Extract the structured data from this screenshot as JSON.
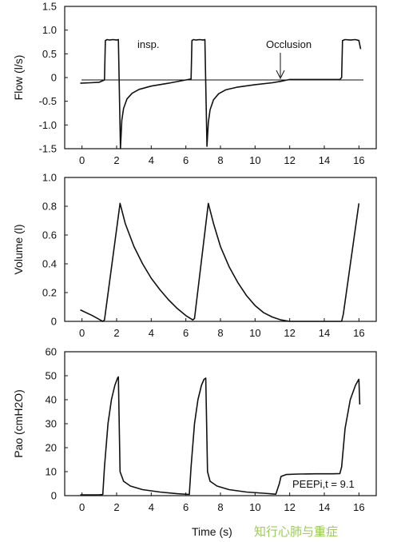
{
  "chart_data": [
    {
      "type": "line",
      "ylabel": "Flow (l/s)",
      "xlim": [
        -1,
        17
      ],
      "ylim": [
        -1.5,
        1.5
      ],
      "xticks": [
        0,
        2,
        4,
        6,
        8,
        10,
        12,
        14,
        16
      ],
      "yticks": [
        1.5,
        1.0,
        0.5,
        0,
        -0.5,
        -1.0,
        -1.5
      ],
      "ytick_labels": [
        "1.5",
        "1.0",
        "0.5",
        "0",
        "-0.5",
        "-1.0",
        "-1.5"
      ],
      "zero_line": true,
      "annotations": [
        "insp.",
        "Occlusion"
      ],
      "series": [
        {
          "x": [
            -0.1,
            0.5,
            1.0,
            1.3,
            1.35,
            1.45,
            1.6,
            1.8,
            2.0,
            2.1,
            2.22,
            2.3,
            2.4,
            2.6,
            2.9,
            3.3,
            4.0,
            5.0,
            6.0,
            6.3,
            6.35,
            6.45,
            6.6,
            6.8,
            7.0,
            7.1,
            7.22,
            7.3,
            7.4,
            7.6,
            7.9,
            8.3,
            9.0,
            10.0,
            11.0,
            11.5,
            12.0,
            13.0,
            14.0,
            14.9,
            15.0,
            15.05,
            15.2,
            15.5,
            15.8,
            16.0,
            16.1
          ],
          "y": [
            -0.12,
            -0.11,
            -0.1,
            -0.05,
            0.78,
            0.8,
            0.79,
            0.8,
            0.79,
            0.8,
            -1.5,
            -0.9,
            -0.65,
            -0.45,
            -0.33,
            -0.25,
            -0.18,
            -0.12,
            -0.05,
            -0.03,
            0.78,
            0.8,
            0.79,
            0.8,
            0.79,
            0.8,
            -1.45,
            -0.95,
            -0.68,
            -0.47,
            -0.34,
            -0.26,
            -0.2,
            -0.15,
            -0.11,
            -0.08,
            -0.04,
            -0.04,
            -0.04,
            -0.04,
            0.0,
            0.78,
            0.8,
            0.79,
            0.8,
            0.78,
            0.6
          ]
        }
      ]
    },
    {
      "type": "line",
      "ylabel": "Volume (l)",
      "xlim": [
        -1,
        17
      ],
      "ylim": [
        0,
        1.0
      ],
      "xticks": [
        0,
        2,
        4,
        6,
        8,
        10,
        12,
        14,
        16
      ],
      "yticks": [
        0,
        0.2,
        0.4,
        0.6,
        0.8,
        1.0
      ],
      "ytick_labels": [
        "0",
        "0.2",
        "0.4",
        "0.6",
        "0.8",
        "1.0"
      ],
      "series": [
        {
          "x": [
            -0.1,
            0.6,
            1.2,
            1.3,
            2.2,
            2.5,
            3.0,
            3.5,
            4.0,
            4.5,
            5.0,
            5.5,
            6.0,
            6.4,
            6.5,
            7.3,
            7.6,
            8.0,
            8.5,
            9.0,
            9.5,
            10.0,
            10.5,
            11.0,
            11.5,
            12.0,
            13.0,
            14.0,
            15.0,
            15.1,
            16.0
          ],
          "y": [
            0.08,
            0.04,
            0.0,
            0.01,
            0.82,
            0.68,
            0.52,
            0.4,
            0.3,
            0.22,
            0.15,
            0.09,
            0.04,
            0.01,
            0.02,
            0.82,
            0.68,
            0.52,
            0.38,
            0.27,
            0.18,
            0.11,
            0.06,
            0.03,
            0.01,
            0.0,
            0.0,
            0.0,
            0.0,
            0.05,
            0.82
          ]
        }
      ]
    },
    {
      "type": "line",
      "ylabel": "Pao (cmH2O)",
      "xlabel": "Time (s)",
      "xlim": [
        -1,
        17
      ],
      "ylim": [
        0,
        60
      ],
      "xticks": [
        0,
        2,
        4,
        6,
        8,
        10,
        12,
        14,
        16
      ],
      "yticks": [
        0,
        10,
        20,
        30,
        40,
        50,
        60
      ],
      "ytick_labels": [
        "0",
        "10",
        "20",
        "30",
        "40",
        "50",
        "60"
      ],
      "annotations": [
        "PEEPi,t = 9.1"
      ],
      "series": [
        {
          "x": [
            -0.1,
            1.0,
            1.2,
            1.3,
            1.5,
            1.7,
            1.9,
            2.05,
            2.1,
            2.2,
            2.4,
            2.8,
            3.5,
            4.5,
            5.5,
            6.2,
            6.3,
            6.5,
            6.7,
            6.9,
            7.05,
            7.15,
            7.25,
            7.4,
            7.8,
            8.5,
            9.5,
            10.5,
            11.2,
            11.4,
            11.5,
            11.8,
            12.5,
            13.5,
            14.5,
            14.9,
            15.0,
            15.2,
            15.5,
            15.8,
            15.95,
            16.0,
            16.05
          ],
          "y": [
            0.3,
            0.3,
            0.5,
            12,
            30,
            40,
            46,
            49,
            49.5,
            10,
            6,
            4,
            2.5,
            1.5,
            0.8,
            0.5,
            12,
            30,
            40,
            46,
            48.5,
            49,
            10,
            6,
            4,
            2.5,
            1.5,
            1,
            0.6,
            5,
            8,
            8.8,
            9,
            9.1,
            9.1,
            9.2,
            12,
            28,
            40,
            46,
            48,
            48.5,
            38
          ]
        }
      ]
    }
  ],
  "watermark": "知行心肺与重症"
}
